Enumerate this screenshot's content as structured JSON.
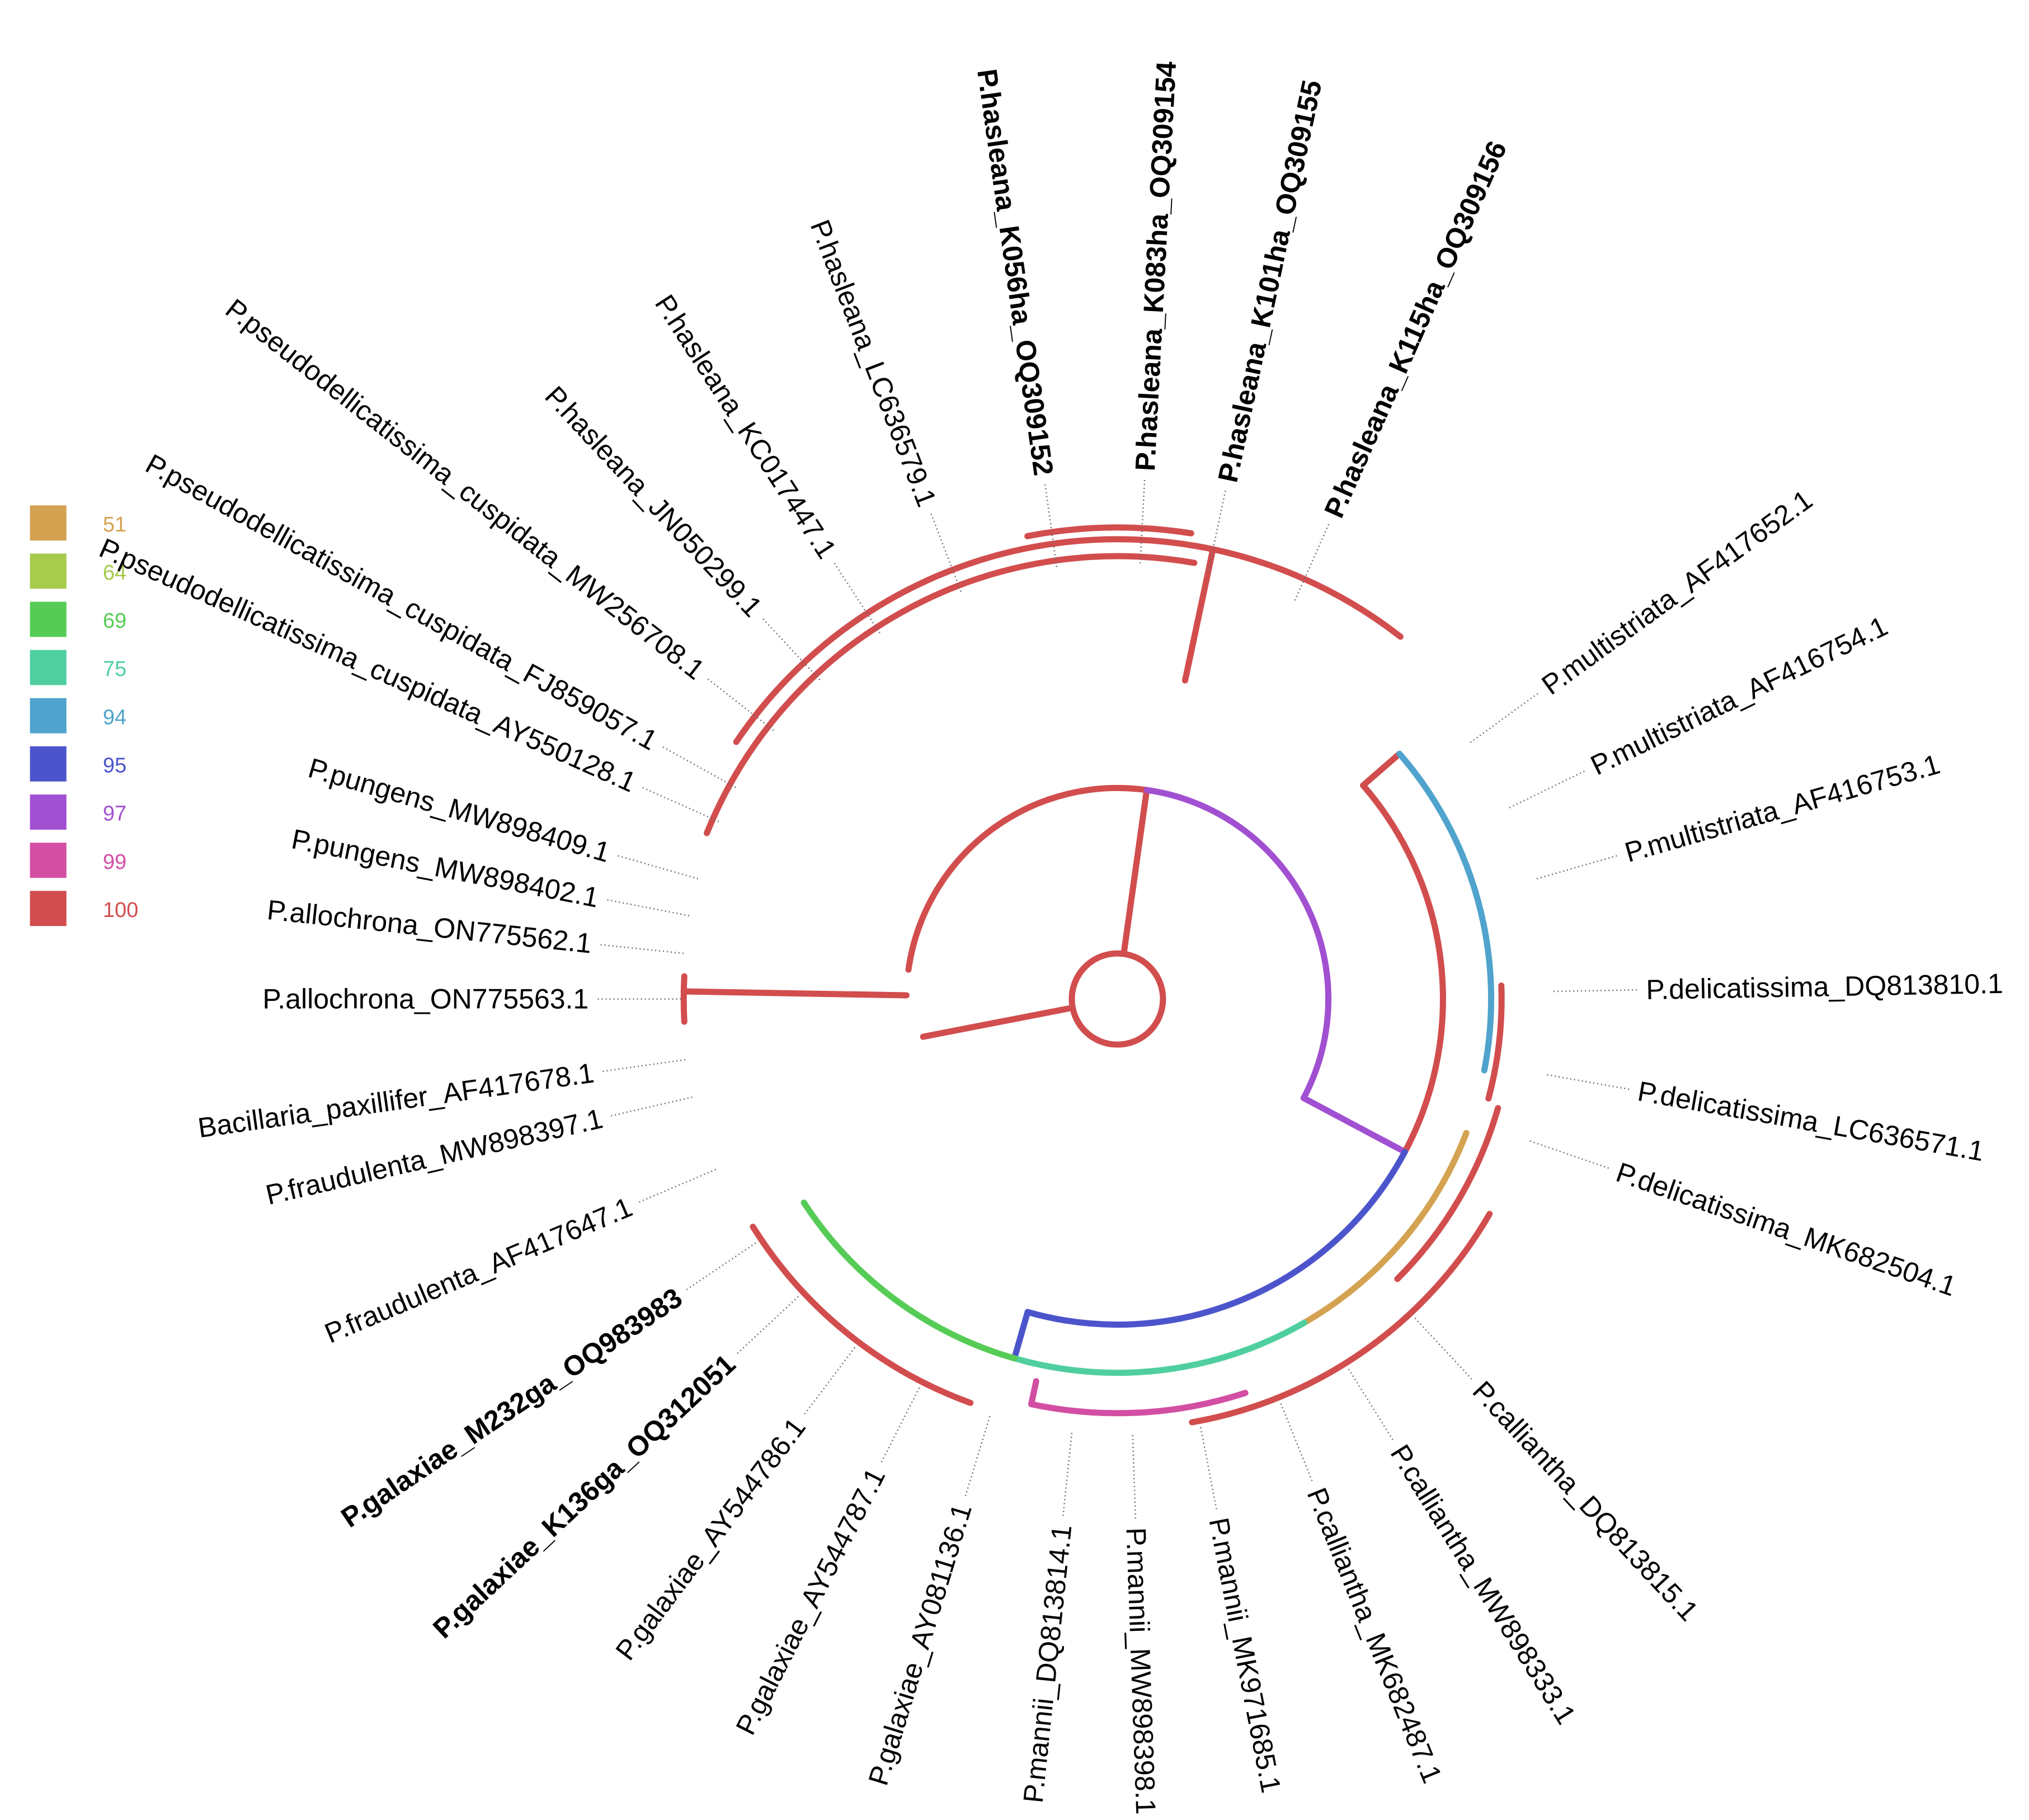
{
  "legend": [
    {
      "label": "51",
      "color": "#d4a251"
    },
    {
      "label": "64",
      "color": "#a6cb4d"
    },
    {
      "label": "69",
      "color": "#56cc56"
    },
    {
      "label": "75",
      "color": "#4fcf9f"
    },
    {
      "label": "94",
      "color": "#4fa3cc"
    },
    {
      "label": "95",
      "color": "#4c54cc"
    },
    {
      "label": "97",
      "color": "#a150d1"
    },
    {
      "label": "99",
      "color": "#d24fa3"
    },
    {
      "label": "100",
      "color": "#d24d4d"
    }
  ],
  "taxa": [
    {
      "label": "P.multistriata_AF417652.1",
      "bold": false
    },
    {
      "label": "P.multistriata_AF416754.1",
      "bold": false
    },
    {
      "label": "P.multistriata_AF416753.1",
      "bold": false
    },
    {
      "label": "P.delicatissima_DQ813810.1",
      "bold": false
    },
    {
      "label": "P.delicatissima_LC636571.1",
      "bold": false
    },
    {
      "label": "P.delicatissima_MK682504.1",
      "bold": false
    },
    {
      "label": "P.calliantha_DQ813815.1",
      "bold": false
    },
    {
      "label": "P.calliantha_MW898333.1",
      "bold": false
    },
    {
      "label": "P.calliantha_MK682487.1",
      "bold": false
    },
    {
      "label": "P.mannii_MK971685.1",
      "bold": false
    },
    {
      "label": "P.mannii_MW898398.1",
      "bold": false
    },
    {
      "label": "P.mannii_DQ813814.1",
      "bold": false
    },
    {
      "label": "P.galaxiae_AY081136.1",
      "bold": false
    },
    {
      "label": "P.galaxiae_AY544787.1",
      "bold": false
    },
    {
      "label": "P.galaxiae_AY544786.1",
      "bold": false
    },
    {
      "label": "P.galaxiae_K136ga_OQ312051",
      "bold": true
    },
    {
      "label": "P.galaxiae_M232ga_OQ983983",
      "bold": true
    },
    {
      "label": "P.fraudulenta_AF417647.1",
      "bold": false
    },
    {
      "label": "P.fraudulenta_MW898397.1",
      "bold": false
    },
    {
      "label": "Bacillaria_paxillifer_AF417678.1",
      "bold": false
    },
    {
      "label": "P.allochrona_ON775563.1",
      "bold": false
    },
    {
      "label": "P.allochrona_ON775562.1",
      "bold": false
    },
    {
      "label": "P.pungens_MW898402.1",
      "bold": false
    },
    {
      "label": "P.pungens_MW898409.1",
      "bold": false
    },
    {
      "label": "P.pseudodellicatissima_cuspidata_AY550128.1",
      "bold": false
    },
    {
      "label": "P.pseudodellicatissima_cuspidata_FJ859057.1",
      "bold": false
    },
    {
      "label": "P.pseudodellicatissima_cuspidata_MW256708.1",
      "bold": false
    },
    {
      "label": "P.hasleana_JN050299.1",
      "bold": false
    },
    {
      "label": "P.hasleana_KC017447.1",
      "bold": false
    },
    {
      "label": "P.hasleana_LC636579.1",
      "bold": false
    },
    {
      "label": "P.hasleana_K056ha_OQ309152",
      "bold": true
    },
    {
      "label": "P.hasleana_K083ha_OQ309154",
      "bold": true
    },
    {
      "label": "P.hasleana_K101ha_OQ309155",
      "bold": true
    },
    {
      "label": "P.hasleana_K115ha_OQ309156",
      "bold": true
    }
  ]
}
